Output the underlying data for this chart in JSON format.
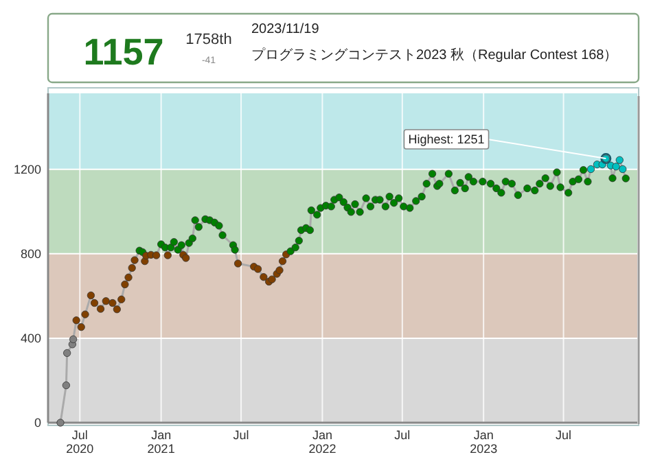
{
  "chart_data": {
    "type": "line",
    "annotations": [
      "1157",
      "1758th",
      "-41",
      "2023/11/19",
      "プログラミングコンテスト2023 秋（Regular Contest 168）",
      {
        "text": "Highest: 1251",
        "x": "2023-10-05",
        "y": 1251
      }
    ],
    "xlim": [
      "2020-04-20",
      "2023-12-15"
    ],
    "ylim": [
      0,
      1560
    ],
    "xticks": [
      {
        "value": "2020-07-01",
        "label": "Jul\n2020"
      },
      {
        "value": "2021-01-01",
        "label": "Jan\n2021"
      },
      {
        "value": "2021-07-01",
        "label": "Jul"
      },
      {
        "value": "2022-01-01",
        "label": "Jan\n2022"
      },
      {
        "value": "2022-07-01",
        "label": "Jul"
      },
      {
        "value": "2023-01-01",
        "label": "Jan\n2023"
      },
      {
        "value": "2023-07-01",
        "label": "Jul"
      }
    ],
    "yticks": [
      0,
      400,
      800,
      1200
    ],
    "grid": true,
    "marker": "circle",
    "line_style": "solid",
    "bands": [
      {
        "axis": "y",
        "from": 0,
        "to": 400,
        "color": "#d8d8d8"
      },
      {
        "axis": "y",
        "from": 400,
        "to": 800,
        "color": "#dcc8bb"
      },
      {
        "axis": "y",
        "from": 800,
        "to": 1200,
        "color": "#bedbbe"
      },
      {
        "axis": "y",
        "from": 1200,
        "to": 1560,
        "color": "#bee8ea"
      }
    ],
    "series": [
      {
        "color": "#aaaaaa",
        "x": [
          "2020-05-18",
          "2020-05-31",
          "2020-06-02",
          "2020-06-14",
          "2020-06-16",
          "2020-06-23",
          "2020-07-04",
          "2020-07-13",
          "2020-07-26",
          "2020-08-03",
          "2020-08-17",
          "2020-08-29",
          "2020-09-13",
          "2020-09-23",
          "2020-10-03",
          "2020-10-11",
          "2020-10-19",
          "2020-10-27",
          "2020-11-02",
          "2020-11-13",
          "2020-11-20",
          "2020-11-25",
          "2020-11-28",
          "2020-12-09",
          "2020-12-21",
          "2021-01-01",
          "2021-01-10",
          "2021-01-16",
          "2021-01-23",
          "2021-01-30",
          "2021-02-08",
          "2021-02-16",
          "2021-02-20",
          "2021-02-26",
          "2021-03-05",
          "2021-03-13",
          "2021-03-19",
          "2021-03-27",
          "2021-04-11",
          "2021-04-21",
          "2021-05-02",
          "2021-05-12",
          "2021-05-20",
          "2021-06-13",
          "2021-06-17",
          "2021-06-24",
          "2021-07-30",
          "2021-08-08",
          "2021-08-21",
          "2021-09-02",
          "2021-09-09",
          "2021-09-20",
          "2021-09-26",
          "2021-10-03",
          "2021-10-11",
          "2021-10-21",
          "2021-11-01",
          "2021-11-09",
          "2021-11-14",
          "2021-11-25",
          "2021-12-04",
          "2021-12-07",
          "2021-12-20",
          "2021-12-28",
          "2022-01-09",
          "2022-01-21",
          "2022-01-28",
          "2022-02-08",
          "2022-02-18",
          "2022-02-27",
          "2022-03-07",
          "2022-03-16",
          "2022-03-27",
          "2022-04-10",
          "2022-04-20",
          "2022-05-01",
          "2022-05-11",
          "2022-05-24",
          "2022-06-02",
          "2022-06-12",
          "2022-06-23",
          "2022-07-04",
          "2022-07-18",
          "2022-08-01",
          "2022-08-14",
          "2022-08-25",
          "2022-09-07",
          "2022-09-18",
          "2022-09-23",
          "2022-10-14",
          "2022-10-28",
          "2022-11-09",
          "2022-11-20",
          "2022-11-28",
          "2022-12-09",
          "2022-12-30",
          "2023-01-17",
          "2023-01-30",
          "2023-02-10",
          "2023-02-20",
          "2023-03-06",
          "2023-03-20",
          "2023-04-10",
          "2023-04-27",
          "2023-05-08",
          "2023-05-21",
          "2023-06-01",
          "2023-06-16",
          "2023-06-24",
          "2023-07-12",
          "2023-07-22",
          "2023-08-04",
          "2023-08-15",
          "2023-08-25",
          "2023-09-01",
          "2023-09-15",
          "2023-09-27",
          "2023-10-05",
          "2023-10-16",
          "2023-10-20",
          "2023-10-28",
          "2023-11-05",
          "2023-11-12",
          "2023-11-19"
        ],
        "values": [
          0,
          177,
          330,
          371,
          395,
          485,
          453,
          513,
          603,
          567,
          539,
          576,
          567,
          537,
          584,
          655,
          688,
          733,
          770,
          815,
          808,
          765,
          791,
          795,
          793,
          845,
          830,
          793,
          830,
          856,
          819,
          841,
          795,
          780,
          851,
          873,
          959,
          927,
          964,
          959,
          948,
          933,
          888,
          841,
          819,
          754,
          739,
          728,
          690,
          668,
          679,
          705,
          722,
          765,
          797,
          812,
          830,
          862,
          912,
          922,
          912,
          1006,
          985,
          1017,
          1028,
          1024,
          1056,
          1067,
          1045,
          1019,
          998,
          1035,
          998,
          1063,
          1024,
          1056,
          1056,
          1024,
          1071,
          1041,
          1063,
          1024,
          1017,
          1050,
          1071,
          1132,
          1179,
          1121,
          1132,
          1179,
          1100,
          1136,
          1110,
          1164,
          1142,
          1142,
          1132,
          1110,
          1089,
          1142,
          1132,
          1078,
          1110,
          1100,
          1132,
          1158,
          1121,
          1186,
          1115,
          1089,
          1142,
          1153,
          1197,
          1142,
          1201,
          1223,
          1223,
          1251,
          1218,
          1158,
          1213,
          1244,
          1201,
          1157
        ],
        "colors": [
          "#808080",
          "#808080",
          "#808080",
          "#808080",
          "#808080",
          "#804000",
          "#804000",
          "#804000",
          "#804000",
          "#804000",
          "#804000",
          "#804000",
          "#804000",
          "#804000",
          "#804000",
          "#804000",
          "#804000",
          "#804000",
          "#804000",
          "#008000",
          "#008000",
          "#804000",
          "#804000",
          "#804000",
          "#804000",
          "#008000",
          "#008000",
          "#804000",
          "#008000",
          "#008000",
          "#008000",
          "#008000",
          "#804000",
          "#804000",
          "#008000",
          "#008000",
          "#008000",
          "#008000",
          "#008000",
          "#008000",
          "#008000",
          "#008000",
          "#008000",
          "#008000",
          "#008000",
          "#804000",
          "#804000",
          "#804000",
          "#804000",
          "#804000",
          "#804000",
          "#804000",
          "#804000",
          "#804000",
          "#804000",
          "#008000",
          "#008000",
          "#008000",
          "#008000",
          "#008000",
          "#008000",
          "#008000",
          "#008000",
          "#008000",
          "#008000",
          "#008000",
          "#008000",
          "#008000",
          "#008000",
          "#008000",
          "#008000",
          "#008000",
          "#008000",
          "#008000",
          "#008000",
          "#008000",
          "#008000",
          "#008000",
          "#008000",
          "#008000",
          "#008000",
          "#008000",
          "#008000",
          "#008000",
          "#008000",
          "#008000",
          "#008000",
          "#008000",
          "#008000",
          "#008000",
          "#008000",
          "#008000",
          "#008000",
          "#008000",
          "#008000",
          "#008000",
          "#008000",
          "#008000",
          "#008000",
          "#008000",
          "#008000",
          "#008000",
          "#008000",
          "#008000",
          "#008000",
          "#008000",
          "#008000",
          "#008000",
          "#008000",
          "#008000",
          "#008000",
          "#008000",
          "#008000",
          "#008000",
          "#00c0c0",
          "#00c0c0",
          "#00c0c0",
          "#00c0c0",
          "#00c0c0",
          "#008000",
          "#00c0c0",
          "#00c0c0",
          "#00c0c0",
          "#008000"
        ]
      }
    ]
  }
}
